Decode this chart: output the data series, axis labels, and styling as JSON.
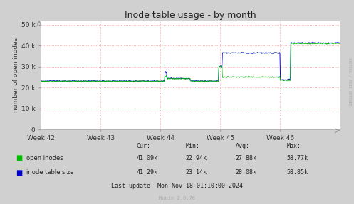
{
  "title": "Inode table usage - by month",
  "ylabel": "number of open inodes",
  "yticks": [
    0,
    10000,
    20000,
    30000,
    40000,
    50000
  ],
  "ytick_labels": [
    "0",
    "10 k",
    "20 k",
    "30 k",
    "40 k",
    "50 k"
  ],
  "xtick_labels": [
    "Week 42",
    "Week 43",
    "Week 44",
    "Week 45",
    "Week 46"
  ],
  "ylim": [
    0,
    52000
  ],
  "bg_color": "#d0d0d0",
  "plot_bg_color": "#ffffff",
  "grid_color": "#ff9999",
  "open_inodes_color": "#00bb00",
  "inode_table_color": "#0000cc",
  "legend_labels": [
    "open inodes",
    "inode table size"
  ],
  "stats_headers": [
    "Cur:",
    "Min:",
    "Avg:",
    "Max:"
  ],
  "stats_open": [
    "41.09k",
    "22.94k",
    "27.88k",
    "58.77k"
  ],
  "stats_table": [
    "41.29k",
    "23.14k",
    "28.08k",
    "58.85k"
  ],
  "last_update": "Last update: Mon Nov 18 01:10:00 2024",
  "munin_version": "Munin 2.0.76",
  "rrdtool_label": "RRDTOOL / TOBI OETIKER",
  "title_fontsize": 9,
  "label_fontsize": 6.5,
  "tick_fontsize": 6.5,
  "stats_fontsize": 6.0
}
